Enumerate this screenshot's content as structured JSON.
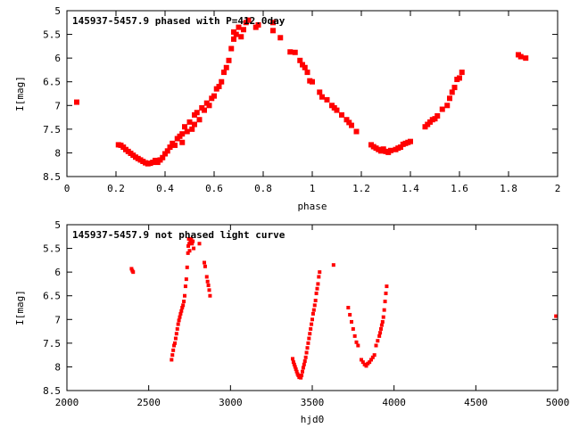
{
  "chart_data": [
    {
      "type": "scatter",
      "title": "145937-5457.9 phased with P=412.0day",
      "xlabel": "phase",
      "ylabel": "I[mag]",
      "xlim": [
        0,
        2
      ],
      "ylim": [
        8.5,
        5
      ],
      "y_inverted": true,
      "grid": false,
      "xticks": [
        "0",
        "0.2",
        "0.4",
        "0.6",
        "0.8",
        "1",
        "1.2",
        "1.4",
        "1.6",
        "1.8",
        "2"
      ],
      "yticks": [
        "5",
        "5.5",
        "6",
        "6.5",
        "7",
        "7.5",
        "8",
        "8.5"
      ],
      "marker_color": "#ff0000",
      "points": [
        [
          0.04,
          6.93
        ],
        [
          0.21,
          7.83
        ],
        [
          0.22,
          7.84
        ],
        [
          0.23,
          7.88
        ],
        [
          0.24,
          7.93
        ],
        [
          0.25,
          7.97
        ],
        [
          0.26,
          8.01
        ],
        [
          0.27,
          8.05
        ],
        [
          0.28,
          8.09
        ],
        [
          0.29,
          8.12
        ],
        [
          0.3,
          8.15
        ],
        [
          0.31,
          8.18
        ],
        [
          0.32,
          8.21
        ],
        [
          0.33,
          8.23
        ],
        [
          0.34,
          8.22
        ],
        [
          0.35,
          8.2
        ],
        [
          0.36,
          8.16
        ],
        [
          0.37,
          8.2
        ],
        [
          0.38,
          8.15
        ],
        [
          0.39,
          8.1
        ],
        [
          0.4,
          8.02
        ],
        [
          0.41,
          7.96
        ],
        [
          0.42,
          7.88
        ],
        [
          0.43,
          7.8
        ],
        [
          0.44,
          7.84
        ],
        [
          0.45,
          7.7
        ],
        [
          0.46,
          7.65
        ],
        [
          0.47,
          7.6
        ],
        [
          0.47,
          7.78
        ],
        [
          0.48,
          7.45
        ],
        [
          0.49,
          7.55
        ],
        [
          0.5,
          7.35
        ],
        [
          0.51,
          7.5
        ],
        [
          0.52,
          7.2
        ],
        [
          0.52,
          7.4
        ],
        [
          0.53,
          7.15
        ],
        [
          0.54,
          7.3
        ],
        [
          0.55,
          7.05
        ],
        [
          0.56,
          7.1
        ],
        [
          0.57,
          6.95
        ],
        [
          0.58,
          7.0
        ],
        [
          0.59,
          6.85
        ],
        [
          0.6,
          6.8
        ],
        [
          0.61,
          6.65
        ],
        [
          0.62,
          6.6
        ],
        [
          0.63,
          6.5
        ],
        [
          0.64,
          6.3
        ],
        [
          0.65,
          6.2
        ],
        [
          0.66,
          6.05
        ],
        [
          0.67,
          5.8
        ],
        [
          0.68,
          5.6
        ],
        [
          0.68,
          5.45
        ],
        [
          0.69,
          5.5
        ],
        [
          0.7,
          5.35
        ],
        [
          0.71,
          5.55
        ],
        [
          0.72,
          5.4
        ],
        [
          0.73,
          5.25
        ],
        [
          0.74,
          5.2
        ],
        [
          0.77,
          5.35
        ],
        [
          0.78,
          5.3
        ],
        [
          0.84,
          5.25
        ],
        [
          0.84,
          5.42
        ],
        [
          0.87,
          5.57
        ],
        [
          0.91,
          5.87
        ],
        [
          0.93,
          5.88
        ],
        [
          0.95,
          6.05
        ],
        [
          0.96,
          6.14
        ],
        [
          0.97,
          6.2
        ],
        [
          0.98,
          6.3
        ],
        [
          0.99,
          6.48
        ],
        [
          1.0,
          6.5
        ],
        [
          1.03,
          6.72
        ],
        [
          1.04,
          6.82
        ],
        [
          1.06,
          6.88
        ],
        [
          1.08,
          7.0
        ],
        [
          1.09,
          7.05
        ],
        [
          1.1,
          7.1
        ],
        [
          1.12,
          7.2
        ],
        [
          1.14,
          7.3
        ],
        [
          1.15,
          7.36
        ],
        [
          1.16,
          7.42
        ],
        [
          1.18,
          7.55
        ],
        [
          1.24,
          7.83
        ],
        [
          1.25,
          7.87
        ],
        [
          1.26,
          7.9
        ],
        [
          1.27,
          7.93
        ],
        [
          1.28,
          7.96
        ],
        [
          1.29,
          7.92
        ],
        [
          1.3,
          7.97
        ],
        [
          1.31,
          7.99
        ],
        [
          1.32,
          7.95
        ],
        [
          1.34,
          7.93
        ],
        [
          1.35,
          7.9
        ],
        [
          1.36,
          7.88
        ],
        [
          1.37,
          7.82
        ],
        [
          1.38,
          7.8
        ],
        [
          1.39,
          7.78
        ],
        [
          1.4,
          7.76
        ],
        [
          1.46,
          7.45
        ],
        [
          1.47,
          7.4
        ],
        [
          1.48,
          7.35
        ],
        [
          1.49,
          7.3
        ],
        [
          1.5,
          7.28
        ],
        [
          1.51,
          7.22
        ],
        [
          1.53,
          7.08
        ],
        [
          1.55,
          7.0
        ],
        [
          1.56,
          6.85
        ],
        [
          1.57,
          6.72
        ],
        [
          1.58,
          6.62
        ],
        [
          1.59,
          6.45
        ],
        [
          1.6,
          6.42
        ],
        [
          1.61,
          6.3
        ],
        [
          1.84,
          5.93
        ],
        [
          1.85,
          5.97
        ],
        [
          1.87,
          6.0
        ]
      ]
    },
    {
      "type": "scatter",
      "title": "145937-5457.9 not phased light curve",
      "xlabel": "hjd0",
      "ylabel": "I[mag]",
      "xlim": [
        2000,
        5000
      ],
      "ylim": [
        8.5,
        5
      ],
      "y_inverted": true,
      "grid": false,
      "xticks": [
        "2000",
        "2500",
        "3000",
        "3500",
        "4000",
        "4500",
        "5000"
      ],
      "yticks": [
        "5",
        "5.5",
        "6",
        "6.5",
        "7",
        "7.5",
        "8",
        "8.5"
      ],
      "marker_color": "#ff0000",
      "points": [
        [
          2395,
          5.93
        ],
        [
          2400,
          5.97
        ],
        [
          2405,
          6.0
        ],
        [
          2640,
          7.85
        ],
        [
          2645,
          7.75
        ],
        [
          2650,
          7.65
        ],
        [
          2655,
          7.55
        ],
        [
          2660,
          7.5
        ],
        [
          2665,
          7.4
        ],
        [
          2670,
          7.3
        ],
        [
          2675,
          7.2
        ],
        [
          2680,
          7.1
        ],
        [
          2685,
          7.02
        ],
        [
          2690,
          6.95
        ],
        [
          2695,
          6.88
        ],
        [
          2700,
          6.82
        ],
        [
          2705,
          6.75
        ],
        [
          2710,
          6.7
        ],
        [
          2715,
          6.62
        ],
        [
          2720,
          6.5
        ],
        [
          2725,
          6.3
        ],
        [
          2730,
          6.15
        ],
        [
          2735,
          5.9
        ],
        [
          2740,
          5.6
        ],
        [
          2742,
          5.45
        ],
        [
          2745,
          5.3
        ],
        [
          2748,
          5.4
        ],
        [
          2750,
          5.55
        ],
        [
          2755,
          5.35
        ],
        [
          2760,
          5.3
        ],
        [
          2765,
          5.4
        ],
        [
          2770,
          5.35
        ],
        [
          2775,
          5.5
        ],
        [
          2810,
          5.4
        ],
        [
          2840,
          5.8
        ],
        [
          2845,
          5.88
        ],
        [
          2855,
          6.1
        ],
        [
          2860,
          6.2
        ],
        [
          2865,
          6.28
        ],
        [
          2870,
          6.38
        ],
        [
          2875,
          6.5
        ],
        [
          3380,
          7.83
        ],
        [
          3385,
          7.9
        ],
        [
          3390,
          7.95
        ],
        [
          3395,
          8.0
        ],
        [
          3400,
          8.05
        ],
        [
          3405,
          8.1
        ],
        [
          3410,
          8.15
        ],
        [
          3415,
          8.18
        ],
        [
          3420,
          8.22
        ],
        [
          3425,
          8.2
        ],
        [
          3430,
          8.23
        ],
        [
          3435,
          8.18
        ],
        [
          3440,
          8.1
        ],
        [
          3445,
          8.02
        ],
        [
          3450,
          7.95
        ],
        [
          3455,
          7.88
        ],
        [
          3460,
          7.8
        ],
        [
          3465,
          7.7
        ],
        [
          3470,
          7.6
        ],
        [
          3475,
          7.5
        ],
        [
          3480,
          7.4
        ],
        [
          3485,
          7.3
        ],
        [
          3490,
          7.2
        ],
        [
          3495,
          7.1
        ],
        [
          3500,
          7.0
        ],
        [
          3505,
          6.88
        ],
        [
          3510,
          6.8
        ],
        [
          3515,
          6.7
        ],
        [
          3520,
          6.6
        ],
        [
          3525,
          6.45
        ],
        [
          3530,
          6.35
        ],
        [
          3535,
          6.25
        ],
        [
          3540,
          6.1
        ],
        [
          3545,
          6.0
        ],
        [
          3630,
          5.85
        ],
        [
          3720,
          6.75
        ],
        [
          3730,
          6.9
        ],
        [
          3740,
          7.05
        ],
        [
          3750,
          7.2
        ],
        [
          3760,
          7.35
        ],
        [
          3770,
          7.48
        ],
        [
          3780,
          7.55
        ],
        [
          3800,
          7.85
        ],
        [
          3810,
          7.9
        ],
        [
          3820,
          7.95
        ],
        [
          3830,
          7.98
        ],
        [
          3840,
          7.93
        ],
        [
          3850,
          7.9
        ],
        [
          3860,
          7.85
        ],
        [
          3870,
          7.8
        ],
        [
          3880,
          7.75
        ],
        [
          3890,
          7.55
        ],
        [
          3900,
          7.45
        ],
        [
          3910,
          7.35
        ],
        [
          3915,
          7.28
        ],
        [
          3920,
          7.2
        ],
        [
          3925,
          7.12
        ],
        [
          3930,
          7.05
        ],
        [
          3935,
          6.95
        ],
        [
          3940,
          6.8
        ],
        [
          3945,
          6.62
        ],
        [
          3950,
          6.45
        ],
        [
          3955,
          6.3
        ],
        [
          4990,
          6.93
        ]
      ]
    }
  ]
}
